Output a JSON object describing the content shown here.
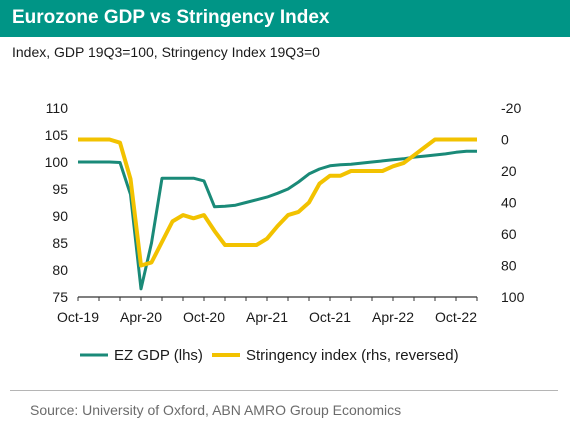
{
  "header": {
    "title": "Eurozone GDP vs Stringency Index",
    "subtitle": "Index, GDP 19Q3=100, Stringency Index 19Q3=0"
  },
  "footer": {
    "source": "Source: University of Oxford, ABN AMRO Group Economics"
  },
  "colors": {
    "title_bar": "#009586",
    "gdp": "#1a8a78",
    "stringency": "#f2c200",
    "axis": "#333333"
  },
  "chart_data": {
    "type": "line",
    "x_tick_labels": [
      "Oct-19",
      "Apr-20",
      "Oct-20",
      "Apr-21",
      "Oct-21",
      "Apr-22",
      "Oct-22"
    ],
    "xlim": [
      "2019-10",
      "2022-12"
    ],
    "y_left": {
      "lim": [
        75,
        110
      ],
      "ticks": [
        75,
        80,
        85,
        90,
        95,
        100,
        105,
        110
      ]
    },
    "y_right": {
      "lim": [
        -20,
        100
      ],
      "reversed": true,
      "ticks": [
        -20,
        0,
        20,
        40,
        60,
        80,
        100
      ]
    },
    "grid": false,
    "legend_position": "bottom",
    "series": [
      {
        "name": "EZ GDP (lhs)",
        "axis": "left",
        "color": "#1a8a78",
        "points": [
          [
            "2019-10",
            100
          ],
          [
            "2020-01",
            100
          ],
          [
            "2020-02",
            99.9
          ],
          [
            "2020-03",
            94
          ],
          [
            "2020-04",
            76.5
          ],
          [
            "2020-05",
            85
          ],
          [
            "2020-06",
            97
          ],
          [
            "2020-07",
            97
          ],
          [
            "2020-08",
            97
          ],
          [
            "2020-09",
            97
          ],
          [
            "2020-10",
            96.5
          ],
          [
            "2020-11",
            91.7
          ],
          [
            "2020-12",
            91.8
          ],
          [
            "2021-01",
            92
          ],
          [
            "2021-02",
            92.5
          ],
          [
            "2021-03",
            93
          ],
          [
            "2021-04",
            93.5
          ],
          [
            "2021-05",
            94.2
          ],
          [
            "2021-06",
            95
          ],
          [
            "2021-07",
            96.3
          ],
          [
            "2021-08",
            97.8
          ],
          [
            "2021-09",
            98.7
          ],
          [
            "2021-10",
            99.3
          ],
          [
            "2021-11",
            99.5
          ],
          [
            "2021-12",
            99.6
          ],
          [
            "2022-01",
            99.8
          ],
          [
            "2022-02",
            100
          ],
          [
            "2022-03",
            100.2
          ],
          [
            "2022-04",
            100.4
          ],
          [
            "2022-05",
            100.6
          ],
          [
            "2022-06",
            100.9
          ],
          [
            "2022-07",
            101.1
          ],
          [
            "2022-08",
            101.3
          ],
          [
            "2022-09",
            101.5
          ],
          [
            "2022-10",
            101.8
          ],
          [
            "2022-11",
            102
          ],
          [
            "2022-12",
            102
          ]
        ]
      },
      {
        "name": "Stringency index (rhs, reversed)",
        "axis": "right",
        "color": "#f2c200",
        "points": [
          [
            "2019-10",
            0
          ],
          [
            "2019-12",
            0
          ],
          [
            "2020-01",
            0
          ],
          [
            "2020-02",
            2
          ],
          [
            "2020-03",
            25
          ],
          [
            "2020-04",
            80
          ],
          [
            "2020-05",
            78
          ],
          [
            "2020-06",
            65
          ],
          [
            "2020-07",
            52
          ],
          [
            "2020-08",
            48
          ],
          [
            "2020-09",
            50
          ],
          [
            "2020-10",
            48
          ],
          [
            "2020-11",
            58
          ],
          [
            "2020-12",
            67
          ],
          [
            "2021-01",
            67
          ],
          [
            "2021-02",
            67
          ],
          [
            "2021-03",
            67
          ],
          [
            "2021-04",
            63
          ],
          [
            "2021-05",
            55
          ],
          [
            "2021-06",
            48
          ],
          [
            "2021-07",
            46
          ],
          [
            "2021-08",
            40
          ],
          [
            "2021-09",
            28
          ],
          [
            "2021-10",
            23
          ],
          [
            "2021-11",
            23
          ],
          [
            "2021-12",
            20
          ],
          [
            "2022-01",
            20
          ],
          [
            "2022-02",
            20
          ],
          [
            "2022-03",
            20
          ],
          [
            "2022-04",
            17
          ],
          [
            "2022-05",
            15
          ],
          [
            "2022-06",
            10
          ],
          [
            "2022-07",
            5
          ],
          [
            "2022-08",
            0
          ],
          [
            "2022-09",
            0
          ],
          [
            "2022-10",
            0
          ],
          [
            "2022-11",
            0
          ],
          [
            "2022-12",
            0
          ]
        ]
      }
    ]
  }
}
